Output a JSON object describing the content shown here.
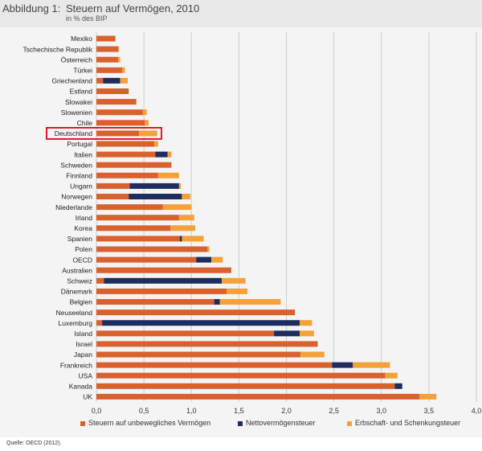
{
  "header": {
    "label": "Abbildung 1:",
    "title": "Steuern auf Vermögen, 2010",
    "subtitle": "in % des BIP"
  },
  "source": "Quelle: OECD (2012).",
  "highlight": "Deutschland",
  "colors": {
    "immobilien": "#d9612e",
    "netto": "#1f2c5e",
    "erbschaft": "#f4a13a",
    "grid": "#cccccc",
    "highlight": "#e2001a"
  },
  "chart_data": {
    "type": "bar",
    "orientation": "horizontal",
    "stacked": true,
    "categories": [
      "Mexiko",
      "Tschechische Republik",
      "Österreich",
      "Türkei",
      "Griechenland",
      "Estland",
      "Slowakei",
      "Slowenien",
      "Chile",
      "Deutschland",
      "Portugal",
      "Italien",
      "Schweden",
      "Finnland",
      "Ungarn",
      "Norwegen",
      "Niederlande",
      "Irland",
      "Korea",
      "Spanien",
      "Polen",
      "OECD",
      "Australien",
      "Schweiz",
      "Dänemark",
      "Belgien",
      "Neuseeland",
      "Luxemburg",
      "Island",
      "Israel",
      "Japan",
      "Frankreich",
      "USA",
      "Kanada",
      "UK"
    ],
    "series": [
      {
        "name": "Steuern auf unbewegliches Vermögen",
        "color": "#d9612e",
        "values": [
          0.2,
          0.23,
          0.23,
          0.27,
          0.07,
          0.34,
          0.42,
          0.49,
          0.51,
          0.45,
          0.61,
          0.62,
          0.79,
          0.65,
          0.35,
          0.34,
          0.7,
          0.87,
          0.78,
          0.88,
          1.17,
          1.05,
          1.42,
          0.08,
          1.37,
          1.24,
          2.09,
          0.06,
          1.87,
          2.33,
          2.15,
          2.48,
          3.04,
          3.14,
          3.4
        ]
      },
      {
        "name": "Nettovermögensteuer",
        "color": "#1f2c5e",
        "values": [
          0,
          0,
          0,
          0,
          0.18,
          0,
          0,
          0,
          0,
          0,
          0,
          0.13,
          0,
          0,
          0.52,
          0.56,
          0,
          0,
          0,
          0.02,
          0,
          0.16,
          0,
          1.24,
          0,
          0.06,
          0,
          2.08,
          0.27,
          0,
          0,
          0.22,
          0,
          0.08,
          0
        ]
      },
      {
        "name": "Erbschaft- und Schenkungsteuer",
        "color": "#f4a13a",
        "values": [
          0,
          0.01,
          0.02,
          0.03,
          0.08,
          0,
          0,
          0.04,
          0.04,
          0.19,
          0.04,
          0.04,
          0,
          0.22,
          0.02,
          0.09,
          0.3,
          0.16,
          0.26,
          0.23,
          0.02,
          0.12,
          0,
          0.25,
          0.22,
          0.64,
          0,
          0.13,
          0.15,
          0,
          0.25,
          0.39,
          0.13,
          0,
          0.18
        ]
      }
    ],
    "xlim": [
      0,
      4.0
    ],
    "xticks": [
      "0,0",
      "0,5",
      "1,0",
      "1,5",
      "2,0",
      "2,5",
      "3,0",
      "3,5",
      "4,0"
    ],
    "grid": "vertical",
    "legend_position": "bottom"
  }
}
